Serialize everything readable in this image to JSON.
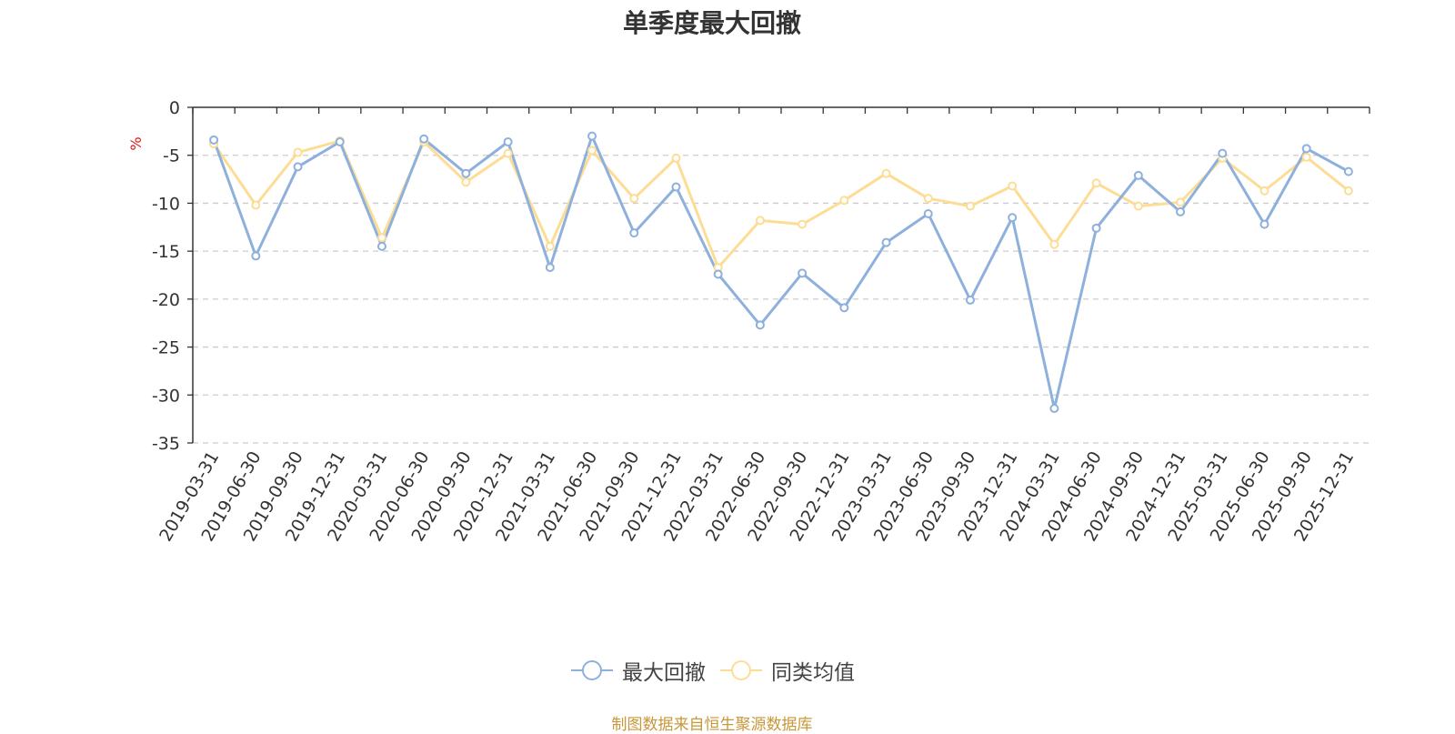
{
  "chart_data": {
    "type": "line",
    "title": "单季度最大回撤",
    "ylabel": "%",
    "ylim": [
      -35,
      0
    ],
    "yticks": [
      0,
      -5,
      -10,
      -15,
      -20,
      -25,
      -30,
      -35
    ],
    "grid": true,
    "legend_position": "bottom",
    "x": [
      "2019-03-31",
      "2019-06-30",
      "2019-09-30",
      "2019-12-31",
      "2020-03-31",
      "2020-06-30",
      "2020-09-30",
      "2020-12-31",
      "2021-03-31",
      "2021-06-30",
      "2021-09-30",
      "2021-12-31",
      "2022-03-31",
      "2022-06-30",
      "2022-09-30",
      "2022-12-31",
      "2023-03-31",
      "2023-06-30",
      "2023-09-30",
      "2023-12-31",
      "2024-03-31",
      "2024-06-30",
      "2024-09-30",
      "2024-12-31",
      "2025-03-31",
      "2025-06-30",
      "2025-09-30",
      "2025-12-31"
    ],
    "series": [
      {
        "name": "最大回撤",
        "color": "#8eb0dc",
        "values": [
          -3.4,
          -15.5,
          -6.2,
          -3.6,
          -14.5,
          -3.3,
          -6.9,
          -3.6,
          -16.7,
          -3.0,
          -13.1,
          -8.3,
          -17.4,
          -22.7,
          -17.3,
          -20.9,
          -14.1,
          -11.1,
          -20.1,
          -11.5,
          -31.4,
          -12.6,
          -7.1,
          -10.9,
          -4.8,
          -12.2,
          -4.3,
          -6.7
        ]
      },
      {
        "name": "同类均值",
        "color": "#fddd96",
        "values": [
          -3.8,
          -10.2,
          -4.7,
          -3.5,
          -13.6,
          -3.6,
          -7.8,
          -4.8,
          -14.5,
          -4.5,
          -9.5,
          -5.3,
          -16.7,
          -11.8,
          -12.2,
          -9.7,
          -6.9,
          -9.5,
          -10.3,
          -8.2,
          -14.3,
          -7.9,
          -10.3,
          -9.9,
          -5.3,
          -8.7,
          -5.2,
          -8.7
        ]
      }
    ]
  },
  "footer": "制图数据来自恒生聚源数据库"
}
